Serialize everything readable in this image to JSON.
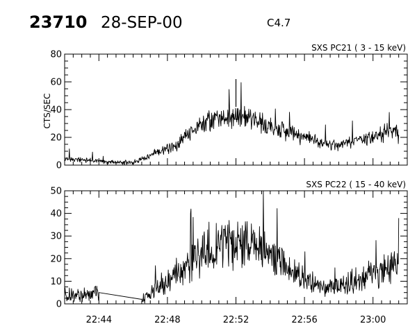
{
  "header": {
    "event_id": "23710",
    "date": "28-SEP-00",
    "flare_class": "C4.7"
  },
  "colors": {
    "foreground": "#000000",
    "background": "#ffffff"
  },
  "chart_data": [
    {
      "type": "line",
      "title": "SXS PC21  (  3 - 15 keV)",
      "ylabel": "CTS/SEC",
      "xlabel": "",
      "xlim": [
        "22:42",
        "23:02"
      ],
      "ylim": [
        0,
        80
      ],
      "yticks": [
        0,
        20,
        40,
        60,
        80
      ],
      "xticks": [
        "22:44",
        "22:48",
        "22:52",
        "22:56",
        "23:00"
      ],
      "series": [
        {
          "x": [
            "22:42:00",
            "22:43:00",
            "22:44:00",
            "22:45:00",
            "22:46:00",
            "22:46:30",
            "22:47:30",
            "22:48:30",
            "22:49:00",
            "22:49:30",
            "22:50:00",
            "22:50:30",
            "22:51:00",
            "22:51:30",
            "22:52:00",
            "22:52:30",
            "22:53:00",
            "22:53:30",
            "22:54:00",
            "22:55:00",
            "22:56:00",
            "22:57:00",
            "22:58:00",
            "22:59:00",
            "23:00:00",
            "23:00:30",
            "23:01:00",
            "23:01:30"
          ],
          "values": [
            4,
            4,
            3,
            2,
            2,
            4,
            10,
            14,
            20,
            25,
            30,
            32,
            35,
            34,
            36,
            35,
            33,
            30,
            28,
            24,
            20,
            16,
            14,
            17,
            21,
            23,
            24,
            22
          ]
        }
      ],
      "annotations": [
        {
          "x": "22:52:00",
          "y": 62,
          "label": ""
        }
      ]
    },
    {
      "type": "line",
      "title": "SXS PC22  ( 15 - 40 keV)",
      "ylabel": "",
      "xlabel": "",
      "xlim": [
        "22:42",
        "23:02"
      ],
      "ylim": [
        0,
        50
      ],
      "yticks": [
        0,
        10,
        20,
        30,
        40,
        50
      ],
      "xticks": [
        "22:44",
        "22:48",
        "22:52",
        "22:56",
        "23:00"
      ],
      "series": [
        {
          "x": [
            "22:42:00",
            "22:43:00",
            "22:44:00",
            "22:46:30",
            "22:47:30",
            "22:48:30",
            "22:49:00",
            "22:49:30",
            "22:50:00",
            "22:50:30",
            "22:51:00",
            "22:51:30",
            "22:52:00",
            "22:52:30",
            "22:53:00",
            "22:53:30",
            "22:54:00",
            "22:55:00",
            "22:56:00",
            "22:57:00",
            "22:58:00",
            "22:59:00",
            "23:00:00",
            "23:00:30",
            "23:01:00",
            "23:01:30"
          ],
          "values": [
            4,
            4,
            5,
            2,
            8,
            13,
            15,
            18,
            22,
            25,
            27,
            26,
            26,
            27,
            26,
            24,
            22,
            16,
            10,
            8,
            8,
            10,
            13,
            15,
            16,
            17
          ]
        }
      ]
    }
  ]
}
